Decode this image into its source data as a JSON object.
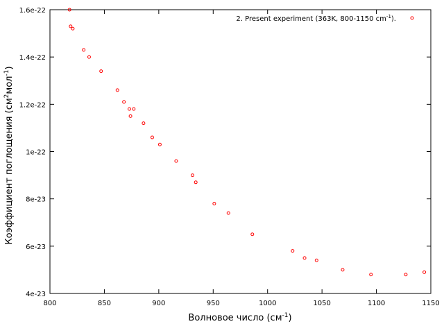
{
  "chart_data": {
    "type": "scatter",
    "xlabel": "Волновое число (см",
    "xlabel_sup": "-1",
    "xlabel_end": ")",
    "ylabel": "Коэффициент поглощения (см",
    "ylabel_sup1": "2",
    "ylabel_mid": "мол",
    "ylabel_sup2": "-1",
    "ylabel_end": ")",
    "xlim": [
      800,
      1150
    ],
    "ylim": [
      4e-23,
      1.6e-22
    ],
    "xticks": [
      800,
      850,
      900,
      950,
      1000,
      1050,
      1100,
      1150
    ],
    "xtick_labels": [
      "800",
      "850",
      "900",
      "950",
      "1000",
      "1050",
      "1100",
      "1150"
    ],
    "yticks": [
      4e-23,
      6e-23,
      8e-23,
      1e-22,
      1.2e-22,
      1.4e-22,
      1.6e-22
    ],
    "ytick_labels": [
      "4e-23",
      "6e-23",
      "8e-23",
      "1e-22",
      "1.2e-22",
      "1.4e-22",
      "1.6e-22"
    ],
    "grid": false,
    "legend_position": "top-right",
    "marker_color": "#ff0000",
    "series": [
      {
        "name": "2. Present experiment (363K, 800-1150 cm",
        "name_sup": "-1",
        "name_end": ").",
        "points": [
          [
            818,
            1.6e-22
          ],
          [
            819,
            1.53e-22
          ],
          [
            821,
            1.52e-22
          ],
          [
            831,
            1.43e-22
          ],
          [
            836,
            1.4e-22
          ],
          [
            847,
            1.34e-22
          ],
          [
            862,
            1.26e-22
          ],
          [
            868,
            1.21e-22
          ],
          [
            873,
            1.18e-22
          ],
          [
            877,
            1.18e-22
          ],
          [
            874,
            1.15e-22
          ],
          [
            886,
            1.12e-22
          ],
          [
            894,
            1.06e-22
          ],
          [
            901,
            1.03e-22
          ],
          [
            916,
            9.6e-23
          ],
          [
            931,
            9e-23
          ],
          [
            934,
            8.7e-23
          ],
          [
            951,
            7.8e-23
          ],
          [
            964,
            7.4e-23
          ],
          [
            986,
            6.5e-23
          ],
          [
            1023,
            5.8e-23
          ],
          [
            1034,
            5.5e-23
          ],
          [
            1045,
            5.4e-23
          ],
          [
            1069,
            5e-23
          ],
          [
            1095,
            4.8e-23
          ],
          [
            1127,
            4.8e-23
          ],
          [
            1144,
            4.9e-23
          ]
        ]
      }
    ]
  }
}
